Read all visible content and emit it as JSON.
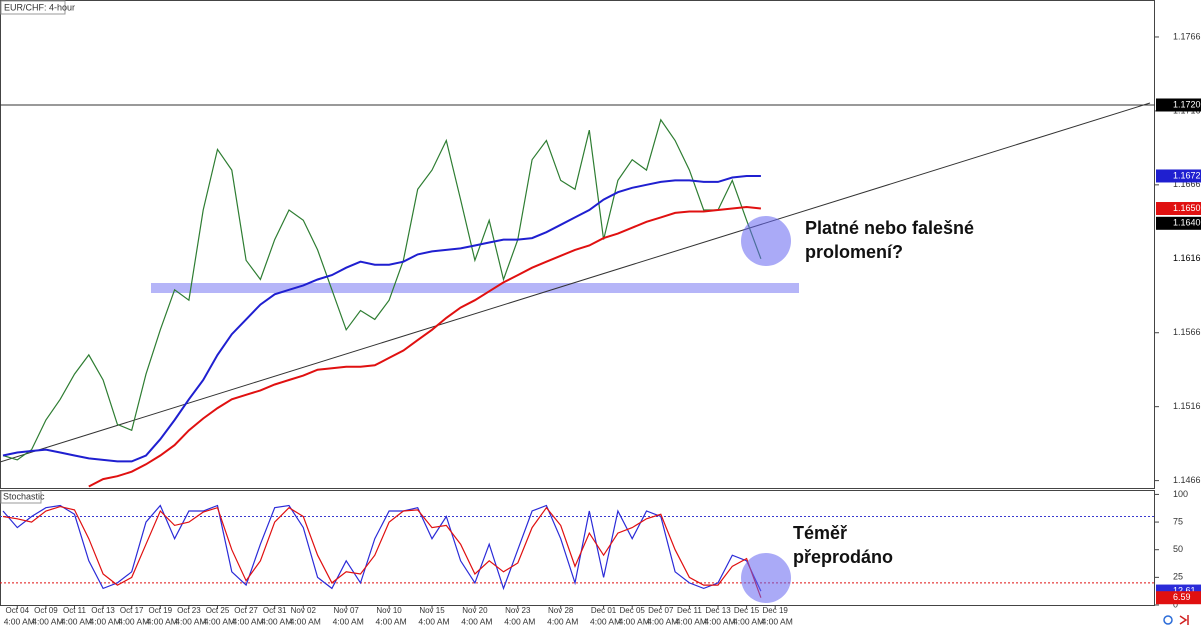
{
  "chart_data": [
    {
      "type": "line",
      "title": "EUR/CHF: 4-hour",
      "ylim": [
        1.1461,
        1.1791
      ],
      "yticks": [
        1.1466,
        1.1516,
        1.1566,
        1.1666,
        1.1716,
        1.1766
      ],
      "annotation": [
        "Platné nebo falešné",
        "prolomení?"
      ],
      "series": [
        {
          "color": "#2e7d32",
          "values": [
            1.1483,
            1.148,
            1.1487,
            1.1507,
            1.1521,
            1.1538,
            1.1551,
            1.1534,
            1.1504,
            1.15,
            1.1538,
            1.1568,
            1.1595,
            1.1588,
            1.1649,
            1.169,
            1.1676,
            1.1615,
            1.1602,
            1.1629,
            1.1649,
            1.1642,
            1.1622,
            1.1595,
            1.1568,
            1.1581,
            1.1575,
            1.1588,
            1.1615,
            1.1663,
            1.1676,
            1.1696,
            1.1656,
            1.1615,
            1.1642,
            1.1602,
            1.1629,
            1.1683,
            1.1696,
            1.1669,
            1.1663,
            1.1703,
            1.1629,
            1.1669,
            1.1683,
            1.1676,
            1.171,
            1.1696,
            1.1676,
            1.1649,
            1.1649,
            1.1669,
            1.1642,
            1.1616,
            null
          ]
        },
        {
          "color": "#1f1fd0",
          "values": [
            1.1483,
            1.1485,
            1.1486,
            1.1487,
            1.1485,
            1.1483,
            1.1481,
            1.148,
            1.1479,
            1.1479,
            1.1483,
            1.1494,
            1.1507,
            1.1521,
            1.1534,
            1.1551,
            1.1565,
            1.1575,
            1.1585,
            1.1592,
            1.1595,
            1.1598,
            1.1602,
            1.1605,
            1.161,
            1.1614,
            1.1612,
            1.1612,
            1.1614,
            1.1619,
            1.1621,
            1.1622,
            1.1623,
            1.1625,
            1.1627,
            1.1629,
            1.1629,
            1.163,
            1.1634,
            1.1639,
            1.1644,
            1.1649,
            1.1656,
            1.1661,
            1.1664,
            1.1666,
            1.1668,
            1.1669,
            1.1669,
            1.1668,
            1.1668,
            1.1671,
            1.1672,
            1.1672,
            null
          ]
        },
        {
          "color": "#e01010",
          "values": [
            null,
            null,
            null,
            null,
            null,
            null,
            1.1462,
            1.1467,
            1.1469,
            1.1472,
            1.1477,
            1.1483,
            1.149,
            1.15,
            1.1508,
            1.1515,
            1.1521,
            1.1524,
            1.1527,
            1.1531,
            1.1534,
            1.1537,
            1.1541,
            1.1542,
            1.1543,
            1.1543,
            1.1544,
            1.1549,
            1.1554,
            1.1561,
            1.1568,
            1.1576,
            1.1583,
            1.1588,
            1.1594,
            1.16,
            1.1605,
            1.161,
            1.1614,
            1.1618,
            1.1622,
            1.1625,
            1.163,
            1.1633,
            1.1637,
            1.1641,
            1.1644,
            1.1647,
            1.1648,
            1.1648,
            1.1649,
            1.165,
            1.1651,
            1.165,
            null
          ]
        }
      ],
      "tags": [
        {
          "value": 1.172,
          "label": "1.1720",
          "color": "#000000",
          "line": true
        },
        {
          "value": 1.1672,
          "label": "1.1672",
          "color": "#1f1fd0"
        },
        {
          "value": 1.165,
          "label": "1.1650",
          "color": "#e01010"
        },
        {
          "value": 1.164,
          "label": "1.1640",
          "color": "#000000"
        },
        {
          "value": 1.1616,
          "label": "1.1616",
          "color": "#ffffff"
        }
      ]
    },
    {
      "type": "line",
      "title": "Stochastic",
      "ylim": [
        0,
        104
      ],
      "yticks": [
        0,
        25,
        50,
        75,
        100
      ],
      "annotation": [
        "Téměř",
        "přeprodáno"
      ],
      "levels": [
        {
          "value": 80,
          "color": "#3a3ad0"
        },
        {
          "value": 20,
          "color": "#e01010"
        }
      ],
      "categories": [
        null,
        "Oct 04",
        null,
        "Oct 09",
        null,
        "Oct 11",
        null,
        "Oct 13",
        null,
        "Oct 17",
        null,
        "Oct 19",
        null,
        "Oct 23",
        null,
        "Oct 25",
        null,
        "Oct 27",
        null,
        "Oct 31",
        null,
        "Nov 02",
        null,
        null,
        "Nov 07",
        null,
        null,
        "Nov 10",
        null,
        null,
        "Nov 15",
        null,
        null,
        "Nov 20",
        null,
        null,
        "Nov 23",
        null,
        null,
        "Nov 28",
        null,
        null,
        "Dec 01",
        null,
        "Dec 05",
        null,
        "Dec 07",
        null,
        "Dec 11",
        null,
        "Dec 13",
        null,
        "Dec 15",
        null,
        "Dec 19"
      ],
      "sublabels": [
        null,
        "4:00 AM",
        null,
        "4:00 AM",
        null,
        "4:00 AM",
        null,
        "4:00 AM",
        null,
        "4:00 AM",
        null,
        "4:00 AM",
        null,
        "4:00 AM",
        null,
        "4:00 AM",
        null,
        "4:00 AM",
        null,
        "4:00 AM",
        null,
        "4:00 AM",
        null,
        null,
        "4:00 AM",
        null,
        null,
        "4:00 AM",
        null,
        null,
        "4:00 AM",
        null,
        null,
        "4:00 AM",
        null,
        null,
        "4:00 AM",
        null,
        null,
        "4:00 AM",
        null,
        null,
        "4:00 AM",
        null,
        "4:00 AM",
        null,
        "4:00 AM",
        null,
        "4:00 AM",
        null,
        "4:00 AM",
        null,
        "4:00 AM",
        null,
        "4:00 AM"
      ],
      "series": [
        {
          "color": "#2b2bd8",
          "values": [
            85,
            70,
            80,
            88,
            90,
            82,
            40,
            15,
            20,
            30,
            75,
            90,
            60,
            85,
            85,
            90,
            30,
            18,
            55,
            88,
            90,
            70,
            25,
            15,
            40,
            20,
            60,
            85,
            85,
            88,
            60,
            80,
            40,
            20,
            55,
            15,
            50,
            85,
            90,
            60,
            20,
            85,
            25,
            85,
            60,
            85,
            80,
            30,
            20,
            15,
            20,
            45,
            40,
            12.61,
            null
          ]
        },
        {
          "color": "#e01010",
          "values": [
            80,
            78,
            75,
            85,
            89,
            86,
            60,
            28,
            18,
            25,
            55,
            85,
            72,
            75,
            84,
            88,
            50,
            22,
            40,
            75,
            88,
            80,
            45,
            20,
            30,
            28,
            45,
            75,
            85,
            86,
            70,
            72,
            55,
            28,
            40,
            30,
            38,
            70,
            88,
            72,
            35,
            65,
            45,
            65,
            70,
            78,
            82,
            50,
            25,
            18,
            18,
            35,
            42,
            6.59,
            null
          ]
        }
      ],
      "tags": [
        {
          "value": 12.61,
          "color": "#2b2bd8"
        },
        {
          "value": 6.59,
          "color": "#e01010"
        }
      ]
    }
  ]
}
